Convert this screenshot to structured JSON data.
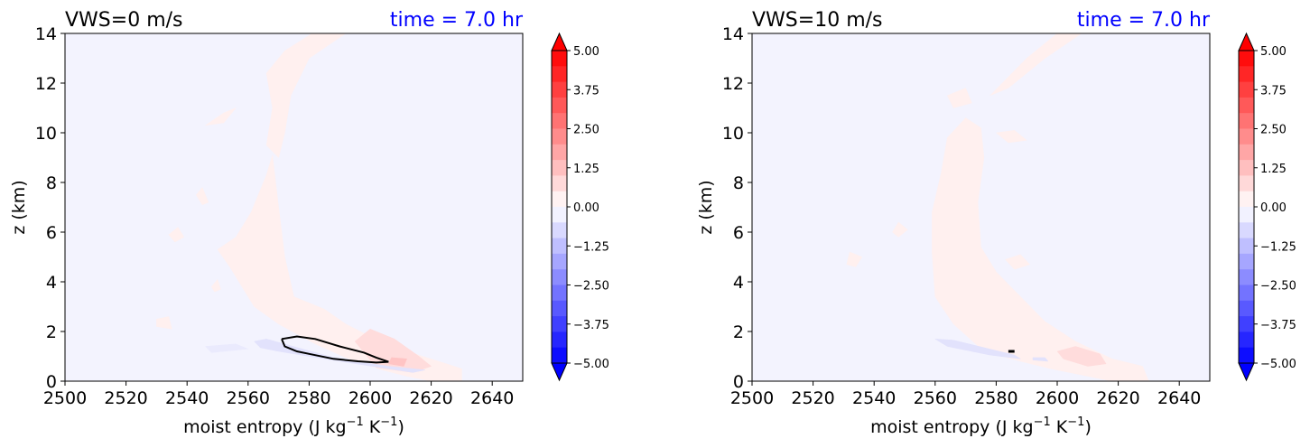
{
  "figure": {
    "background": "#ffffff"
  },
  "chart_data": [
    {
      "type": "contour",
      "title": "VWS=0 m/s",
      "time_label": "time = 7.0 hr",
      "time_color": "#0000ff",
      "xlabel": "moist entropy (J kg",
      "xlabel_sup1": "−1",
      "xlabel_mid": " K",
      "xlabel_sup2": "−1",
      "xlabel_end": ")",
      "ylabel": "z (km)",
      "xlim": [
        2500,
        2650
      ],
      "ylim": [
        0,
        14
      ],
      "xticks": [
        "2500",
        "2520",
        "2540",
        "2560",
        "2580",
        "2600",
        "2620",
        "2640"
      ],
      "yticks": [
        "0",
        "2",
        "4",
        "6",
        "8",
        "10",
        "12",
        "14"
      ],
      "background_color": "#f3f3fe",
      "colorbar": {
        "range": [
          -5,
          5
        ],
        "ticks": [
          "5.00",
          "3.75",
          "2.50",
          "1.25",
          "0.00",
          "−1.25",
          "−2.50",
          "−3.75",
          "−5.00"
        ],
        "colormap": "bwr",
        "extend": "both"
      },
      "regions": [
        {
          "fill": "#fff0ef",
          "points": [
            [
              2561,
              6.8
            ],
            [
              2566,
              8.3
            ],
            [
              2568,
              9.1
            ],
            [
              2570,
              7.0
            ],
            [
              2572,
              5.0
            ],
            [
              2575,
              3.4
            ],
            [
              2585,
              2.9
            ],
            [
              2592,
              2.3
            ],
            [
              2600,
              1.8
            ],
            [
              2612,
              1.2
            ],
            [
              2625,
              0.7
            ],
            [
              2630,
              0.5
            ],
            [
              2630,
              0
            ],
            [
              2620,
              0
            ],
            [
              2612,
              0.2
            ],
            [
              2604,
              0.45
            ],
            [
              2592,
              0.95
            ],
            [
              2582,
              1.5
            ],
            [
              2570,
              2.3
            ],
            [
              2562,
              3.0
            ],
            [
              2554,
              4.6
            ],
            [
              2550,
              5.3
            ],
            [
              2556,
              5.8
            ]
          ]
        },
        {
          "fill": "#fff0ef",
          "points": [
            [
              2566,
              9.5
            ],
            [
              2568,
              11.0
            ],
            [
              2566,
              12.4
            ],
            [
              2572,
              13.3
            ],
            [
              2581,
              14.0
            ],
            [
              2592,
              14.0
            ],
            [
              2580,
              13.0
            ],
            [
              2574,
              11.5
            ],
            [
              2572,
              10.0
            ],
            [
              2570,
              9.0
            ]
          ]
        },
        {
          "fill": "#ffdcdc",
          "points": [
            [
              2595,
              1.6
            ],
            [
              2600,
              2.1
            ],
            [
              2608,
              1.7
            ],
            [
              2616,
              1.0
            ],
            [
              2620,
              0.6
            ],
            [
              2614,
              0.35
            ],
            [
              2602,
              0.55
            ]
          ]
        },
        {
          "fill": "#ffc4c4",
          "points": [
            [
              2607,
              0.95
            ],
            [
              2612,
              0.9
            ],
            [
              2611,
              0.6
            ],
            [
              2606,
              0.7
            ]
          ]
        },
        {
          "fill": "#e2e2fc",
          "points": [
            [
              2562,
              1.6
            ],
            [
              2566,
              1.7
            ],
            [
              2588,
              0.95
            ],
            [
              2606,
              0.6
            ],
            [
              2618,
              0.45
            ],
            [
              2614,
              0.35
            ],
            [
              2590,
              0.8
            ],
            [
              2570,
              1.2
            ],
            [
              2564,
              1.35
            ]
          ]
        },
        {
          "fill": "#eaeafd",
          "points": [
            [
              2546,
              1.4
            ],
            [
              2556,
              1.5
            ],
            [
              2560,
              1.3
            ],
            [
              2548,
              1.15
            ]
          ]
        },
        {
          "fill": "#fff0ef",
          "points": [
            [
              2530,
              2.5
            ],
            [
              2534,
              2.6
            ],
            [
              2535,
              2.1
            ],
            [
              2530,
              2.2
            ]
          ]
        },
        {
          "fill": "#fff0ef",
          "points": [
            [
              2546,
              10.3
            ],
            [
              2552,
              10.8
            ],
            [
              2556,
              11.0
            ],
            [
              2552,
              10.4
            ]
          ]
        },
        {
          "fill": "#fff0ef",
          "points": [
            [
              2543,
              7.5
            ],
            [
              2545,
              7.8
            ],
            [
              2547,
              7.2
            ],
            [
              2545,
              7.1
            ]
          ]
        },
        {
          "fill": "#fff0ef",
          "points": [
            [
              2534,
              5.9
            ],
            [
              2537,
              6.2
            ],
            [
              2539,
              5.8
            ],
            [
              2536,
              5.6
            ]
          ]
        },
        {
          "fill": "#fff0ef",
          "points": [
            [
              2548,
              3.8
            ],
            [
              2550,
              4.1
            ],
            [
              2551,
              3.7
            ],
            [
              2549,
              3.6
            ]
          ]
        }
      ],
      "contour_lines": [
        {
          "color": "#000000",
          "points": [
            [
              2571,
              1.7
            ],
            [
              2576,
              1.8
            ],
            [
              2582,
              1.7
            ],
            [
              2590,
              1.4
            ],
            [
              2598,
              1.15
            ],
            [
              2602,
              0.95
            ],
            [
              2606,
              0.78
            ],
            [
              2602,
              0.75
            ],
            [
              2596,
              0.8
            ],
            [
              2588,
              0.9
            ],
            [
              2580,
              1.1
            ],
            [
              2576,
              1.2
            ],
            [
              2572,
              1.4
            ],
            [
              2571,
              1.7
            ]
          ]
        }
      ]
    },
    {
      "type": "contour",
      "title": "VWS=10 m/s",
      "time_label": "time = 7.0 hr",
      "time_color": "#0000ff",
      "xlabel": "moist entropy (J kg",
      "xlabel_sup1": "−1",
      "xlabel_mid": " K",
      "xlabel_sup2": "−1",
      "xlabel_end": ")",
      "ylabel": "z (km)",
      "xlim": [
        2500,
        2650
      ],
      "ylim": [
        0,
        14
      ],
      "xticks": [
        "2500",
        "2520",
        "2540",
        "2560",
        "2580",
        "2600",
        "2620",
        "2640"
      ],
      "yticks": [
        "0",
        "2",
        "4",
        "6",
        "8",
        "10",
        "12",
        "14"
      ],
      "background_color": "#f3f3fe",
      "colorbar": {
        "range": [
          -5,
          5
        ],
        "ticks": [
          "5.00",
          "3.75",
          "2.50",
          "1.25",
          "0.00",
          "−1.25",
          "−2.50",
          "−3.75",
          "−5.00"
        ],
        "colormap": "bwr",
        "extend": "both"
      },
      "regions": [
        {
          "fill": "#fff0ef",
          "points": [
            [
              2562,
              8.4
            ],
            [
              2564,
              9.8
            ],
            [
              2570,
              10.6
            ],
            [
              2575,
              10.2
            ],
            [
              2576,
              9.0
            ],
            [
              2574,
              7.2
            ],
            [
              2575,
              5.4
            ],
            [
              2580,
              4.4
            ],
            [
              2588,
              3.4
            ],
            [
              2596,
              2.4
            ],
            [
              2606,
              1.6
            ],
            [
              2618,
              0.9
            ],
            [
              2628,
              0.6
            ],
            [
              2630,
              0
            ],
            [
              2618,
              0
            ],
            [
              2610,
              0.2
            ],
            [
              2598,
              0.5
            ],
            [
              2588,
              0.8
            ],
            [
              2576,
              1.2
            ],
            [
              2566,
              2.3
            ],
            [
              2560,
              3.4
            ],
            [
              2559,
              5.2
            ],
            [
              2559,
              6.8
            ]
          ]
        },
        {
          "fill": "#fff0ef",
          "points": [
            [
              2580,
              10.0
            ],
            [
              2586,
              10.1
            ],
            [
              2590,
              9.7
            ],
            [
              2584,
              9.6
            ]
          ]
        },
        {
          "fill": "#fff0ef",
          "points": [
            [
              2578,
              11.5
            ],
            [
              2590,
              13.0
            ],
            [
              2600,
              14.0
            ],
            [
              2608,
              14.0
            ],
            [
              2596,
              13.0
            ],
            [
              2584,
              11.8
            ]
          ]
        },
        {
          "fill": "#fff0ef",
          "points": [
            [
              2564,
              11.5
            ],
            [
              2570,
              11.8
            ],
            [
              2572,
              11.2
            ],
            [
              2566,
              11.0
            ]
          ]
        },
        {
          "fill": "#fff0ef",
          "points": [
            [
              2531,
              4.7
            ],
            [
              2532,
              5.2
            ],
            [
              2536,
              5.0
            ],
            [
              2534,
              4.6
            ]
          ]
        },
        {
          "fill": "#fff0ef",
          "points": [
            [
              2546,
              6.0
            ],
            [
              2548,
              6.4
            ],
            [
              2551,
              6.1
            ],
            [
              2548,
              5.8
            ]
          ]
        },
        {
          "fill": "#fff0ef",
          "points": [
            [
              2583,
              4.9
            ],
            [
              2588,
              5.1
            ],
            [
              2591,
              4.7
            ],
            [
              2586,
              4.5
            ]
          ]
        },
        {
          "fill": "#ffdcdc",
          "points": [
            [
              2600,
              1.2
            ],
            [
              2606,
              1.4
            ],
            [
              2614,
              1.1
            ],
            [
              2616,
              0.7
            ],
            [
              2610,
              0.6
            ],
            [
              2602,
              0.9
            ]
          ]
        },
        {
          "fill": "#e2e2fc",
          "points": [
            [
              2560,
              1.7
            ],
            [
              2566,
              1.65
            ],
            [
              2586,
              1.05
            ],
            [
              2588,
              0.9
            ],
            [
              2578,
              1.05
            ],
            [
              2564,
              1.4
            ]
          ]
        },
        {
          "fill": "#e2e2fc",
          "points": [
            [
              2592,
              0.95
            ],
            [
              2596,
              0.95
            ],
            [
              2597,
              0.8
            ],
            [
              2592,
              0.85
            ]
          ]
        }
      ],
      "contour_lines": [
        {
          "color": "#000000",
          "points": [
            [
              2584,
              1.2
            ],
            [
              2586,
              1.2
            ]
          ]
        }
      ]
    }
  ]
}
